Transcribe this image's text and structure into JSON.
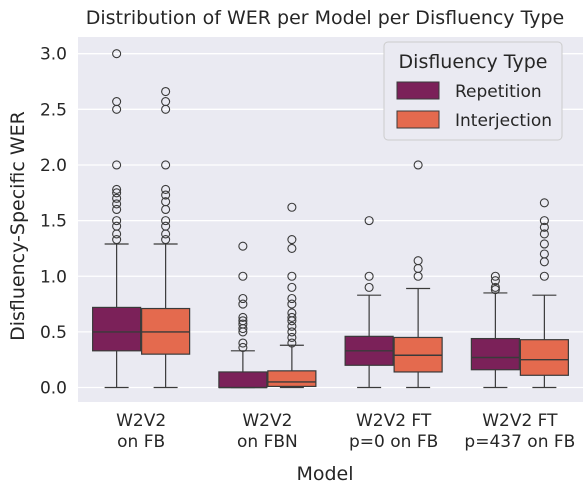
{
  "chart_data": {
    "type": "boxplot",
    "title": "Distribution of WER per Model per Disfluency Type",
    "xlabel": "Model",
    "ylabel": "Disfluency-Specific WER",
    "ylim": [
      -0.13,
      3.15
    ],
    "yticks": [
      0.0,
      0.5,
      1.0,
      1.5,
      2.0,
      2.5,
      3.0
    ],
    "ytick_labels": [
      "0.0",
      "0.5",
      "1.0",
      "1.5",
      "2.0",
      "2.5",
      "3.0"
    ],
    "grid": true,
    "legend": {
      "title": "Disfluency Type",
      "position": "top-right"
    },
    "categories": [
      [
        "W2V2",
        "on FB"
      ],
      [
        "W2V2",
        "on FBN"
      ],
      [
        "W2V2 FT",
        "p=0 on FB"
      ],
      [
        "W2V2 FT",
        "p=437 on FB"
      ]
    ],
    "series": [
      {
        "name": "Repetition",
        "color": "#7b2159",
        "boxes": [
          {
            "q1": 0.33,
            "median": 0.5,
            "q3": 0.72,
            "whislo": 0.0,
            "whishi": 1.29,
            "fliers": [
              1.33,
              1.38,
              1.45,
              1.5,
              1.6,
              1.65,
              1.7,
              1.75,
              1.78,
              2.0,
              2.5,
              2.57,
              3.0
            ]
          },
          {
            "q1": 0.0,
            "median": 0.0,
            "q3": 0.14,
            "whislo": 0.0,
            "whishi": 0.33,
            "fliers": [
              0.36,
              0.4,
              0.5,
              0.53,
              0.57,
              0.6,
              0.63,
              0.75,
              0.8,
              1.0,
              1.27
            ]
          },
          {
            "q1": 0.2,
            "median": 0.33,
            "q3": 0.46,
            "whislo": 0.0,
            "whishi": 0.83,
            "fliers": [
              0.9,
              1.0,
              1.5
            ]
          },
          {
            "q1": 0.16,
            "median": 0.27,
            "q3": 0.44,
            "whislo": 0.0,
            "whishi": 0.85,
            "fliers": [
              0.88,
              0.9,
              0.96,
              1.0
            ]
          }
        ]
      },
      {
        "name": "Interjection",
        "color": "#e46a4e",
        "boxes": [
          {
            "q1": 0.3,
            "median": 0.5,
            "q3": 0.71,
            "whislo": 0.0,
            "whishi": 1.29,
            "fliers": [
              1.33,
              1.38,
              1.45,
              1.5,
              1.6,
              1.67,
              1.73,
              1.78,
              2.0,
              2.5,
              2.57,
              2.66
            ]
          },
          {
            "q1": 0.01,
            "median": 0.05,
            "q3": 0.15,
            "whislo": 0.0,
            "whishi": 0.38,
            "fliers": [
              0.4,
              0.45,
              0.5,
              0.55,
              0.6,
              0.63,
              0.67,
              0.75,
              0.8,
              0.9,
              1.0,
              1.25,
              1.33,
              1.62
            ]
          },
          {
            "q1": 0.14,
            "median": 0.29,
            "q3": 0.45,
            "whislo": 0.0,
            "whishi": 0.89,
            "fliers": [
              1.0,
              1.07,
              1.14,
              2.0
            ]
          },
          {
            "q1": 0.11,
            "median": 0.25,
            "q3": 0.43,
            "whislo": 0.0,
            "whishi": 0.83,
            "fliers": [
              1.0,
              1.13,
              1.2,
              1.29,
              1.38,
              1.44,
              1.5,
              1.66
            ]
          }
        ]
      }
    ]
  }
}
